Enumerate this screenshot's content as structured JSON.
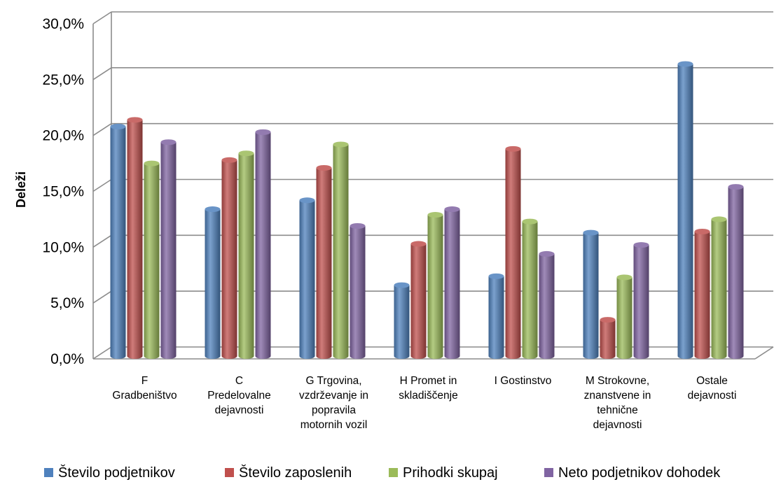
{
  "chart_data": {
    "type": "bar",
    "title": "",
    "xlabel": "",
    "ylabel": "Deleži",
    "ylim": [
      0,
      30
    ],
    "yticks": [
      "0,0%",
      "5,0%",
      "10,0%",
      "15,0%",
      "20,0%",
      "25,0%",
      "30,0%"
    ],
    "grid": true,
    "legend_position": "bottom",
    "categories": [
      [
        "F",
        "Gradbeništvo"
      ],
      [
        "C",
        "Predelovalne",
        "dejavnosti"
      ],
      [
        "G Trgovina,",
        "vzdrževanje in",
        "popravila",
        "motornih vozil"
      ],
      [
        "H Promet in",
        "skladiščenje"
      ],
      [
        "I Gostinstvo"
      ],
      [
        "M Strokovne,",
        "znanstvene in",
        "tehnične",
        "dejavnosti"
      ],
      [
        "Ostale",
        "dejavnosti"
      ]
    ],
    "series": [
      {
        "name": "Število podjetnikov",
        "color": "#4F81BD",
        "values": [
          20.8,
          13.4,
          14.2,
          6.6,
          7.4,
          11.3,
          26.4
        ]
      },
      {
        "name": "Število zaposlenih",
        "color": "#C0504D",
        "values": [
          21.4,
          17.8,
          17.1,
          10.3,
          18.8,
          3.5,
          11.4
        ]
      },
      {
        "name": "Prihodki skupaj",
        "color": "#9BBB59",
        "values": [
          17.5,
          18.4,
          19.2,
          12.9,
          12.3,
          7.3,
          12.5
        ]
      },
      {
        "name": "Neto podjetnikov dohodek",
        "color": "#8064A2",
        "values": [
          19.4,
          20.3,
          11.9,
          13.4,
          9.4,
          10.2,
          15.4
        ]
      }
    ]
  }
}
